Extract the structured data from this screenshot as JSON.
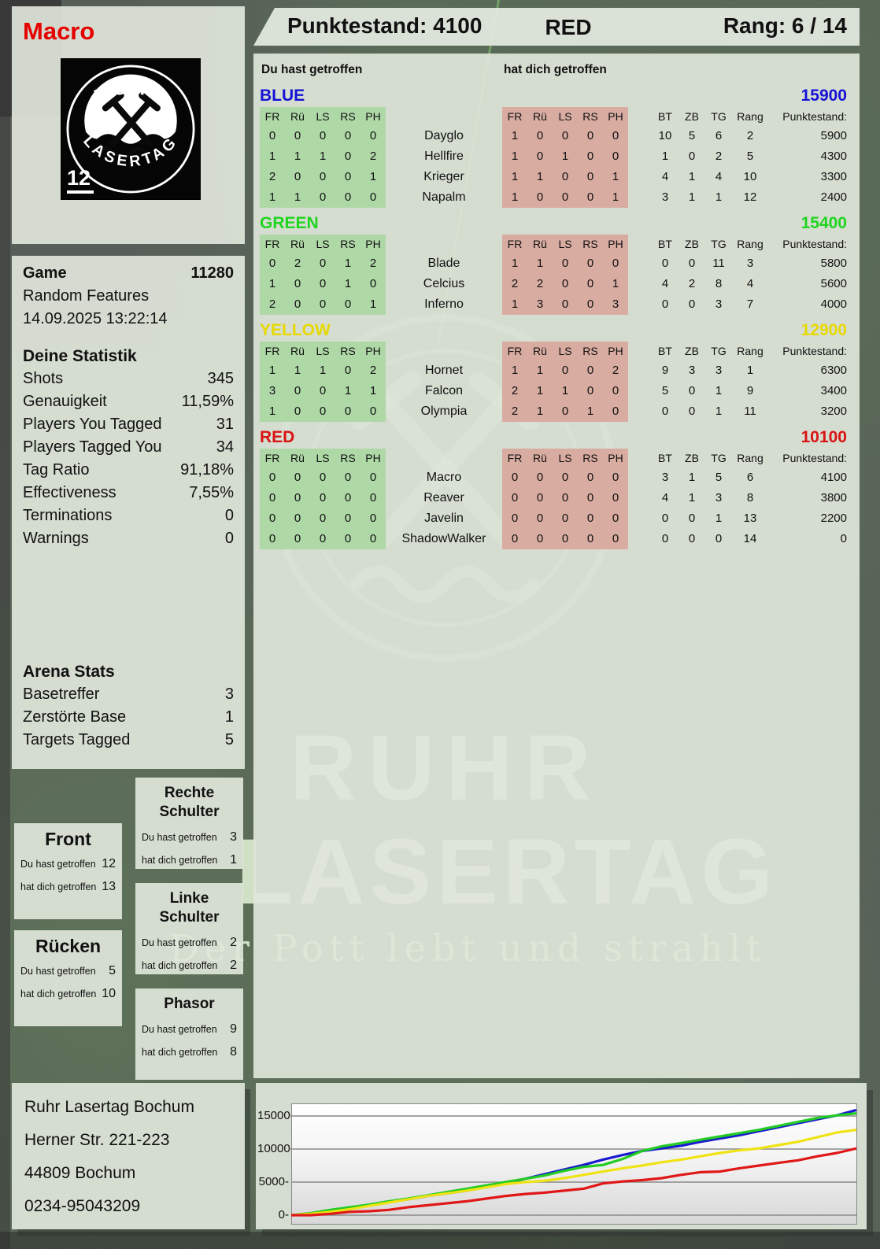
{
  "player": {
    "name": "Macro",
    "pack_number": "12"
  },
  "logo": {
    "ring_top": "RUHR",
    "ring_bottom": "LASERTAG"
  },
  "header": {
    "score_text": "Punktestand: 4100",
    "team": "RED",
    "rank_text": "Rang: 6 / 14"
  },
  "game_info": {
    "label": "Game",
    "value": "11280",
    "mode": "Random Features",
    "datetime": "14.09.2025 13:22:14"
  },
  "deine_statistik": {
    "title": "Deine Statistik",
    "rows": [
      {
        "label": "Shots",
        "value": "345"
      },
      {
        "label": "Genauigkeit",
        "value": "11,59%"
      },
      {
        "label": "Players You Tagged",
        "value": "31"
      },
      {
        "label": "Players Tagged You",
        "value": "34"
      },
      {
        "label": "Tag Ratio",
        "value": "91,18%"
      },
      {
        "label": "Effectiveness",
        "value": "7,55%"
      },
      {
        "label": "Terminations",
        "value": "0"
      },
      {
        "label": "Warnings",
        "value": "0"
      }
    ]
  },
  "arena_stats": {
    "title": "Arena Stats",
    "rows": [
      {
        "label": "Basetreffer",
        "value": "3"
      },
      {
        "label": "Zerstörte Base",
        "value": "1"
      },
      {
        "label": "Targets Tagged",
        "value": "5"
      }
    ]
  },
  "body_parts": {
    "front": {
      "title": "Front",
      "hit_label": "Du hast getroffen",
      "got_label": "hat dich getroffen",
      "hit": "12",
      "got": "13"
    },
    "ruecken": {
      "title": "Rücken",
      "hit_label": "Du hast getroffen",
      "got_label": "hat dich getroffen",
      "hit": "5",
      "got": "10"
    },
    "rechte_schulter": {
      "title": "Rechte Schulter",
      "hit_label": "Du hast getroffen",
      "got_label": "hat dich getroffen",
      "hit": "3",
      "got": "1"
    },
    "linke_schulter": {
      "title": "Linke Schulter",
      "hit_label": "Du hast getroffen",
      "got_label": "hat dich getroffen",
      "hit": "2",
      "got": "2"
    },
    "phasor": {
      "title": "Phasor",
      "hit_label": "Du hast getroffen",
      "got_label": "hat dich getroffen",
      "hit": "9",
      "got": "8"
    }
  },
  "scoreboard": {
    "you_hit_label": "Du hast getroffen",
    "hit_you_label": "hat dich getroffen",
    "columns_left": [
      "FR",
      "Rü",
      "LS",
      "RS",
      "PH"
    ],
    "columns_right": [
      "FR",
      "Rü",
      "LS",
      "RS",
      "PH"
    ],
    "columns_stats": [
      "BT",
      "ZB",
      "TG",
      "Rang",
      "Punktestand:"
    ],
    "teams": [
      {
        "name": "BLUE",
        "color": "#1512d6",
        "total": "15900",
        "players": [
          {
            "name": "Dayglo",
            "you_hit": [
              0,
              0,
              0,
              0,
              0
            ],
            "hit_you": [
              1,
              0,
              0,
              0,
              0
            ],
            "stats": [
              10,
              5,
              6,
              2
            ],
            "score": "5900"
          },
          {
            "name": "Hellfire",
            "you_hit": [
              1,
              1,
              1,
              0,
              2
            ],
            "hit_you": [
              1,
              0,
              1,
              0,
              0
            ],
            "stats": [
              1,
              0,
              2,
              5
            ],
            "score": "4300"
          },
          {
            "name": "Krieger",
            "you_hit": [
              2,
              0,
              0,
              0,
              1
            ],
            "hit_you": [
              1,
              1,
              0,
              0,
              1
            ],
            "stats": [
              4,
              1,
              4,
              10
            ],
            "score": "3300"
          },
          {
            "name": "Napalm",
            "you_hit": [
              1,
              1,
              0,
              0,
              0
            ],
            "hit_you": [
              1,
              0,
              0,
              0,
              1
            ],
            "stats": [
              3,
              1,
              1,
              12
            ],
            "score": "2400"
          }
        ]
      },
      {
        "name": "GREEN",
        "color": "#1fd51f",
        "total": "15400",
        "players": [
          {
            "name": "Blade",
            "you_hit": [
              0,
              2,
              0,
              1,
              2
            ],
            "hit_you": [
              1,
              1,
              0,
              0,
              0
            ],
            "stats": [
              0,
              0,
              11,
              3
            ],
            "score": "5800"
          },
          {
            "name": "Celcius",
            "you_hit": [
              1,
              0,
              0,
              1,
              0
            ],
            "hit_you": [
              2,
              2,
              0,
              0,
              1
            ],
            "stats": [
              4,
              2,
              8,
              4
            ],
            "score": "5600"
          },
          {
            "name": "Inferno",
            "you_hit": [
              2,
              0,
              0,
              0,
              1
            ],
            "hit_you": [
              1,
              3,
              0,
              0,
              3
            ],
            "stats": [
              0,
              0,
              3,
              7
            ],
            "score": "4000"
          }
        ]
      },
      {
        "name": "YELLOW",
        "color": "#e7d800",
        "total": "12900",
        "players": [
          {
            "name": "Hornet",
            "you_hit": [
              1,
              1,
              1,
              0,
              2
            ],
            "hit_you": [
              1,
              1,
              0,
              0,
              2
            ],
            "stats": [
              9,
              3,
              3,
              1
            ],
            "score": "6300"
          },
          {
            "name": "Falcon",
            "you_hit": [
              3,
              0,
              0,
              1,
              1
            ],
            "hit_you": [
              2,
              1,
              1,
              0,
              0
            ],
            "stats": [
              5,
              0,
              1,
              9
            ],
            "score": "3400"
          },
          {
            "name": "Olympia",
            "you_hit": [
              1,
              0,
              0,
              0,
              0
            ],
            "hit_you": [
              2,
              1,
              0,
              1,
              0
            ],
            "stats": [
              0,
              0,
              1,
              11
            ],
            "score": "3200"
          }
        ]
      },
      {
        "name": "RED",
        "color": "#d81414",
        "total": "10100",
        "players": [
          {
            "name": "Macro",
            "you_hit": [
              0,
              0,
              0,
              0,
              0
            ],
            "hit_you": [
              0,
              0,
              0,
              0,
              0
            ],
            "stats": [
              3,
              1,
              5,
              6
            ],
            "score": "4100"
          },
          {
            "name": "Reaver",
            "you_hit": [
              0,
              0,
              0,
              0,
              0
            ],
            "hit_you": [
              0,
              0,
              0,
              0,
              0
            ],
            "stats": [
              4,
              1,
              3,
              8
            ],
            "score": "3800"
          },
          {
            "name": "Javelin",
            "you_hit": [
              0,
              0,
              0,
              0,
              0
            ],
            "hit_you": [
              0,
              0,
              0,
              0,
              0
            ],
            "stats": [
              0,
              0,
              1,
              13
            ],
            "score": "2200"
          },
          {
            "name": "ShadowWalker",
            "you_hit": [
              0,
              0,
              0,
              0,
              0
            ],
            "hit_you": [
              0,
              0,
              0,
              0,
              0
            ],
            "stats": [
              0,
              0,
              0,
              14
            ],
            "score": "0"
          }
        ]
      }
    ]
  },
  "watermark": {
    "line1": "RUHR",
    "line2": "LASERTAG",
    "tagline": "Der Pott lebt und strahlt"
  },
  "address": {
    "lines": [
      "Ruhr Lasertag Bochum",
      "Herner Str. 221-223",
      "44809 Bochum",
      "0234-95043209"
    ]
  },
  "chart_data": {
    "type": "line",
    "title": "",
    "xlabel": "",
    "ylabel": "",
    "ylim": [
      0,
      16900
    ],
    "yticks": [
      0,
      5000,
      10000,
      15000
    ],
    "ytick_labels": [
      "0-",
      "5000-",
      "10000-",
      "15000-"
    ],
    "grid": true,
    "legend": false,
    "series": [
      {
        "name": "BLUE",
        "color": "#1a1ad0",
        "values": [
          0,
          100,
          400,
          900,
          1500,
          2000,
          2400,
          2900,
          3300,
          3700,
          4300,
          4800,
          5500,
          6200,
          6900,
          7600,
          8400,
          9100,
          9700,
          10100,
          10500,
          11100,
          11600,
          12100,
          12700,
          13300,
          13900,
          14500,
          15100,
          15900
        ]
      },
      {
        "name": "GREEN",
        "color": "#22cc22",
        "values": [
          0,
          300,
          800,
          1200,
          1600,
          2100,
          2500,
          3000,
          3500,
          4000,
          4500,
          5000,
          5500,
          6000,
          6700,
          7300,
          7600,
          8500,
          9700,
          10400,
          10900,
          11400,
          11900,
          12400,
          12900,
          13500,
          14100,
          14700,
          15100,
          15400
        ]
      },
      {
        "name": "YELLOW",
        "color": "#efe313",
        "values": [
          0,
          200,
          500,
          900,
          1400,
          1900,
          2400,
          2900,
          3300,
          3700,
          4200,
          4700,
          5000,
          5200,
          5600,
          6100,
          6600,
          7100,
          7500,
          8000,
          8400,
          8900,
          9400,
          9800,
          10100,
          10600,
          11100,
          11800,
          12500,
          12900
        ]
      },
      {
        "name": "RED",
        "color": "#e01818",
        "values": [
          0,
          0,
          200,
          500,
          600,
          800,
          1200,
          1500,
          1800,
          2100,
          2500,
          2900,
          3200,
          3400,
          3700,
          4000,
          4800,
          5100,
          5300,
          5600,
          6100,
          6500,
          6600,
          7100,
          7500,
          7900,
          8300,
          8900,
          9400,
          10100
        ]
      }
    ]
  }
}
